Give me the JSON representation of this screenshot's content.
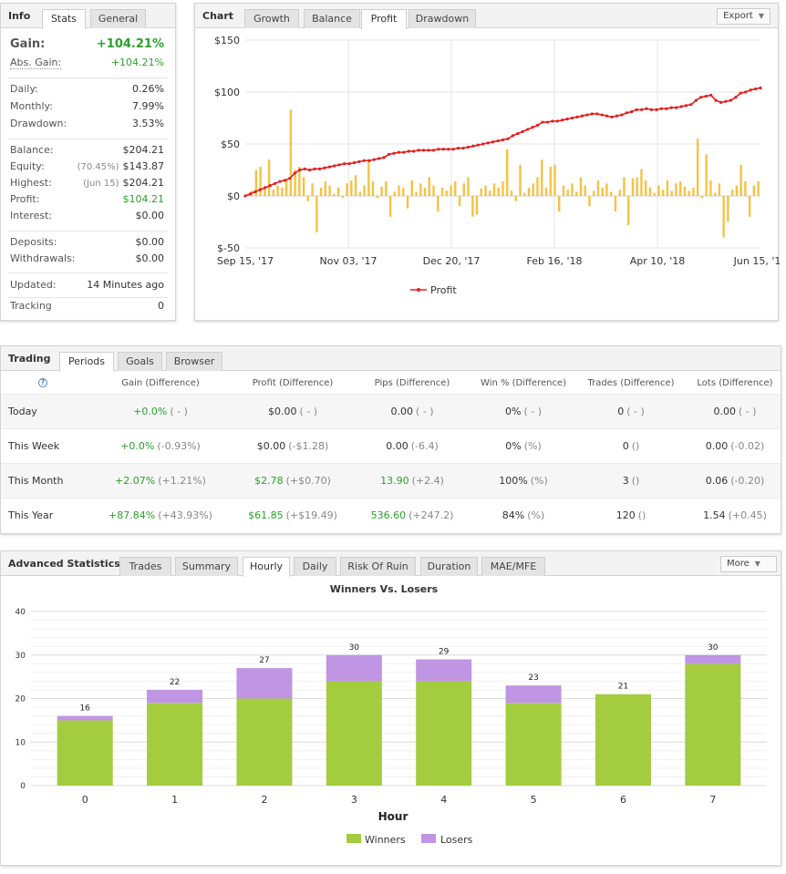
{
  "info": {
    "title": "Info",
    "tabs": [
      "Stats",
      "General"
    ],
    "gain": {
      "label": "Gain:",
      "value": "+104.21%"
    },
    "abs_gain": {
      "label": "Abs. Gain:",
      "value": "+104.21%"
    },
    "daily": {
      "label": "Daily:",
      "value": "0.26%"
    },
    "monthly": {
      "label": "Monthly:",
      "value": "7.99%"
    },
    "drawdown": {
      "label": "Drawdown:",
      "value": "3.53%"
    },
    "balance": {
      "label": "Balance:",
      "value": "$204.21"
    },
    "equity": {
      "label": "Equity:",
      "sub": "(70.45%)",
      "value": "$143.87"
    },
    "highest": {
      "label": "Highest:",
      "sub": "(Jun 15)",
      "value": "$204.21"
    },
    "profit": {
      "label": "Profit:",
      "value": "$104.21"
    },
    "interest": {
      "label": "Interest:",
      "value": "$0.00"
    },
    "deposits": {
      "label": "Deposits:",
      "value": "$0.00"
    },
    "withdrawals": {
      "label": "Withdrawals:",
      "value": "$0.00"
    },
    "updated": {
      "label": "Updated:",
      "value": "14 Minutes ago"
    },
    "tracking": {
      "label": "Tracking",
      "value": "0"
    }
  },
  "chart_panel": {
    "title": "Chart",
    "tabs": [
      "Growth",
      "Balance",
      "Profit",
      "Drawdown"
    ],
    "active_tab": "Profit",
    "export_label": "Export"
  },
  "trading": {
    "title": "Trading",
    "tabs": [
      "Periods",
      "Goals",
      "Browser"
    ],
    "help_icon": "question-icon",
    "headers": [
      "Gain (Difference)",
      "Profit (Difference)",
      "Pips (Difference)",
      "Win % (Difference)",
      "Trades (Difference)",
      "Lots (Difference)"
    ],
    "rows": [
      {
        "period": "Today",
        "gain": "+0.0%",
        "gain_d": "( - )",
        "profit": "$0.00",
        "profit_d": "( - )",
        "pips": "0.00",
        "pips_d": "( - )",
        "win": "0%",
        "win_d": "( - )",
        "trades": "0",
        "trades_d": "( - )",
        "lots": "0.00",
        "lots_d": "( - )"
      },
      {
        "period": "This Week",
        "gain": "+0.0%",
        "gain_d": "(-0.93%)",
        "profit": "$0.00",
        "profit_d": "(-$1.28)",
        "pips": "0.00",
        "pips_d": "(-6.4)",
        "win": "0%",
        "win_d": "(%)",
        "trades": "0",
        "trades_d": "()",
        "lots": "0.00",
        "lots_d": "(-0.02)"
      },
      {
        "period": "This Month",
        "gain": "+2.07%",
        "gain_d": "(+1.21%)",
        "profit": "$2.78",
        "profit_d": "(+$0.70)",
        "pips": "13.90",
        "pips_d": "(+2.4)",
        "win": "100%",
        "win_d": "(%)",
        "trades": "3",
        "trades_d": "()",
        "lots": "0.06",
        "lots_d": "(-0.20)"
      },
      {
        "period": "This Year",
        "gain": "+87.84%",
        "gain_d": "(+43.93%)",
        "profit": "$61.85",
        "profit_d": "(+$19.49)",
        "pips": "536.60",
        "pips_d": "(+247.2)",
        "win": "84%",
        "win_d": "(%)",
        "trades": "120",
        "trades_d": "()",
        "lots": "1.54",
        "lots_d": "(+0.45)"
      }
    ]
  },
  "advanced": {
    "title": "Advanced Statistics",
    "tabs": [
      "Trades",
      "Summary",
      "Hourly",
      "Daily",
      "Risk Of Ruin",
      "Duration",
      "MAE/MFE"
    ],
    "active_tab": "Hourly",
    "more_label": "More"
  },
  "colors": {
    "profit_line": "#e02020",
    "profit_bars": "#f5c242",
    "winners": "#a3cc3f",
    "losers": "#c095e4",
    "gain_green": "#2ca02c"
  },
  "chart_data": [
    {
      "type": "line",
      "subtype": "line-with-bars",
      "title": "",
      "x_tick_labels": [
        "Sep 15, '17",
        "Nov 03, '17",
        "Dec 20, '17",
        "Feb 16, '18",
        "Apr 10, '18",
        "Jun 15, '18"
      ],
      "y_tick_labels": [
        "$150",
        "$100",
        "$50",
        "$0",
        "$-50"
      ],
      "ylim": [
        -50,
        150
      ],
      "legend": [
        "Profit"
      ],
      "grid": true,
      "series": [
        {
          "name": "Profit",
          "type": "line",
          "values": [
            0,
            2,
            4,
            6,
            8,
            10,
            12,
            14,
            15,
            17,
            22,
            25,
            26,
            25,
            26,
            26,
            27,
            28,
            29,
            30,
            31,
            31,
            32,
            33,
            34,
            34,
            35,
            36,
            37,
            40,
            41,
            42,
            42,
            43,
            43,
            44,
            44,
            44,
            44,
            45,
            45,
            45,
            45,
            46,
            46,
            47,
            48,
            49,
            50,
            51,
            52,
            53,
            54,
            55,
            58,
            60,
            62,
            64,
            66,
            68,
            71,
            71,
            72,
            72,
            73,
            74,
            75,
            76,
            77,
            78,
            79,
            79,
            78,
            77,
            76,
            77,
            78,
            80,
            81,
            83,
            83,
            84,
            83,
            83,
            84,
            84,
            85,
            85,
            86,
            87,
            88,
            92,
            95,
            96,
            97,
            92,
            90,
            91,
            92,
            95,
            99,
            100,
            102,
            103,
            104
          ]
        },
        {
          "type": "bar",
          "values": [
            2,
            5,
            25,
            28,
            8,
            35,
            6,
            10,
            8,
            15,
            83,
            25,
            28,
            18,
            -5,
            12,
            -35,
            8,
            14,
            10,
            2,
            8,
            -2,
            12,
            15,
            20,
            4,
            10,
            35,
            14,
            -2,
            9,
            14,
            -20,
            4,
            10,
            8,
            -12,
            15,
            4,
            12,
            8,
            18,
            10,
            -15,
            8,
            5,
            10,
            14,
            -10,
            12,
            18,
            -20,
            -18,
            7,
            10,
            5,
            12,
            8,
            14,
            45,
            5,
            -5,
            30,
            3,
            8,
            12,
            18,
            35,
            8,
            28,
            30,
            -15,
            10,
            6,
            12,
            4,
            18,
            10,
            -10,
            5,
            15,
            8,
            12,
            4,
            -15,
            6,
            18,
            -28,
            17,
            18,
            26,
            15,
            8,
            3,
            10,
            6,
            15,
            5,
            12,
            14,
            9,
            5,
            8,
            55,
            -2,
            40,
            15,
            3,
            12,
            -40,
            -25,
            6,
            10,
            30,
            14,
            -20,
            10,
            14
          ]
        }
      ]
    },
    {
      "type": "bar",
      "stacked": true,
      "title": "Winners Vs. Losers",
      "xlabel": "Hour",
      "ylabel": "",
      "categories": [
        "0",
        "1",
        "2",
        "3",
        "4",
        "5",
        "6",
        "7"
      ],
      "ylim": [
        0,
        40
      ],
      "y_ticks": [
        0,
        10,
        20,
        30,
        40
      ],
      "grid": true,
      "legend_position": "bottom",
      "totals": [
        16,
        22,
        27,
        30,
        29,
        23,
        21,
        30
      ],
      "series": [
        {
          "name": "Winners",
          "values": [
            15,
            19,
            20,
            24,
            24,
            19,
            21,
            28
          ]
        },
        {
          "name": "Losers",
          "values": [
            1,
            3,
            7,
            6,
            5,
            4,
            0,
            2
          ]
        }
      ]
    }
  ]
}
